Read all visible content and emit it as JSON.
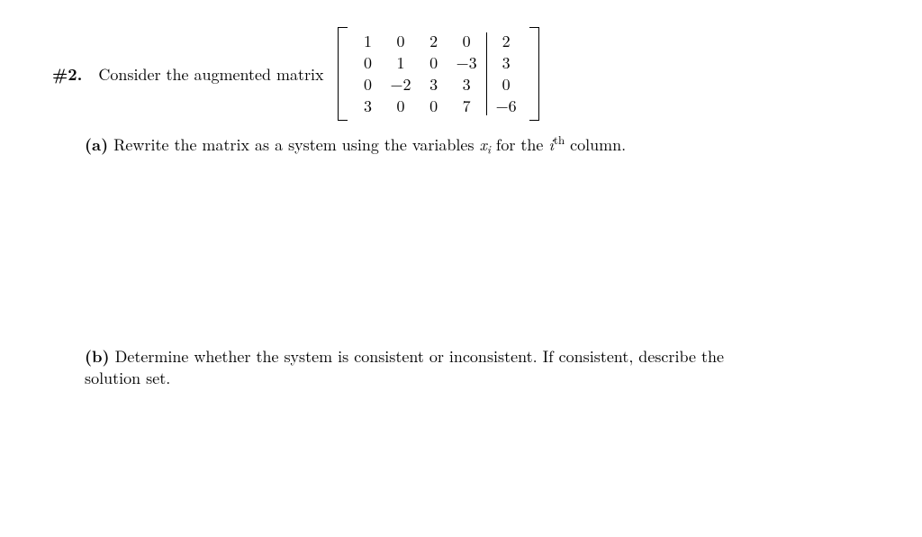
{
  "problem_label": "#2.",
  "intro_text": "Consider the augmented matrix",
  "matrix": {
    "rows": [
      [
        "1",
        "0",
        "2",
        "0",
        "2"
      ],
      [
        "0",
        "1",
        "0",
        "−3",
        "3"
      ],
      [
        "0",
        "−2",
        "3",
        "3",
        "0"
      ],
      [
        "3",
        "0",
        "0",
        "7",
        "−6"
      ]
    ],
    "augment_after_col": 4
  },
  "part_a": {
    "label": "(a)",
    "text_before": "Rewrite the matrix as a system using the variables ",
    "var_base": "x",
    "var_sub": "i",
    "text_mid": " for the ",
    "ith_base": "i",
    "ith_sup": "th",
    "text_after": " column."
  },
  "part_b": {
    "label": "(b)",
    "text_line1": "Determine whether the system is consistent or inconsistent.  If consistent, describe the",
    "text_line2": "solution set."
  },
  "colors": {
    "text": "#000000",
    "bg": "#ffffff"
  },
  "fontsize_pt": 12
}
